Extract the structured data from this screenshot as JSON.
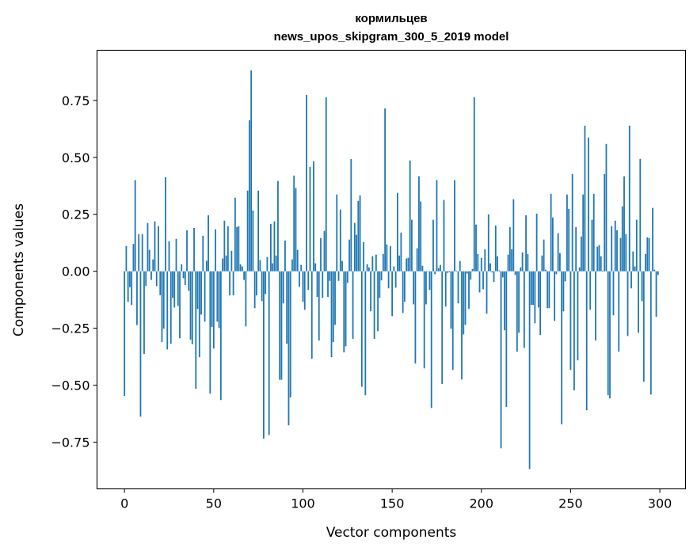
{
  "chart_data": {
    "type": "bar",
    "title": "кормильцев",
    "subtitle": "news_upos_skipgram_300_5_2019 model",
    "xlabel": "Vector components",
    "ylabel": "Components values",
    "xlim": [
      -15.39,
      314.39
    ],
    "ylim": [
      -0.955,
      0.97
    ],
    "xticks": [
      0,
      50,
      100,
      150,
      200,
      250,
      300
    ],
    "xtick_labels": [
      "0",
      "50",
      "100",
      "150",
      "200",
      "250",
      "300"
    ],
    "yticks": [
      -0.75,
      -0.5,
      -0.25,
      0,
      0.25,
      0.5,
      0.75
    ],
    "ytick_labels": [
      "−0.75",
      "−0.50",
      "−0.25",
      "0.00",
      "0.25",
      "0.50",
      "0.75"
    ],
    "grid": false,
    "bar_color": "#1f77b4",
    "values": [
      -0.547,
      0.111,
      -0.134,
      -0.07,
      -0.148,
      0.12,
      0.4,
      -0.236,
      0.163,
      -0.638,
      0.163,
      -0.363,
      -0.065,
      0.212,
      0.094,
      -0.038,
      0.052,
      0.219,
      -0.065,
      0.198,
      -0.105,
      -0.311,
      -0.252,
      0.413,
      -0.343,
      0.132,
      -0.318,
      -0.117,
      -0.159,
      0.142,
      -0.152,
      -0.294,
      0.031,
      -0.03,
      -0.06,
      0.18,
      -0.086,
      -0.3,
      -0.32,
      0.19,
      -0.516,
      -0.165,
      -0.377,
      -0.19,
      0.156,
      -0.221,
      0.046,
      0.246,
      -0.537,
      -0.244,
      -0.339,
      0.184,
      -0.221,
      -0.249,
      -0.565,
      0.056,
      0.222,
      0.069,
      0.198,
      -0.106,
      0.09,
      -0.106,
      0.323,
      0.194,
      0.198,
      0.031,
      0.021,
      -0.038,
      -0.242,
      0.354,
      0.663,
      0.882,
      0.267,
      -0.162,
      -0.106,
      0.354,
      0.049,
      -0.131,
      -0.735,
      -0.1,
      0.0625,
      -0.719,
      0.208,
      0.035,
      0.219,
      0.069,
      0.396,
      -0.476,
      -0.476,
      -0.141,
      0.135,
      -0.318,
      -0.676,
      -0.554,
      0.052,
      0.42,
      0.365,
      0.094,
      -0.068,
      0.028,
      -0.134,
      -0.169,
      0.774,
      -0.082,
      0.458,
      -0.384,
      0.483,
      0.035,
      -0.113,
      -0.304,
      0.146,
      -0.117,
      0.177,
      0.764,
      -0.113,
      -0.042,
      -0.377,
      -0.311,
      -0.235,
      0.337,
      -0.042,
      0.271,
      0.045,
      -0.356,
      -0.329,
      -0.051,
      0.139,
      0.493,
      -0.297,
      0.212,
      0.16,
      0.309,
      0.333,
      -0.507,
      0.128,
      -0.544,
      0.031,
      0.017,
      -0.176,
      0.066,
      -0.297,
      0.073,
      -0.263,
      -0.117,
      -0.04,
      0.076,
      0.715,
      0.118,
      -0.075,
      0.111,
      -0.197,
      0.021,
      -0.072,
      0.344,
      0.069,
      0.17,
      -0.183,
      -0.134,
      0.056,
      0.059,
      0.486,
      0.226,
      -0.145,
      -0.405,
      0.101,
      0.417,
      0.306,
      0.024,
      -0.426,
      -0.145,
      0.0,
      -0.082,
      -0.6,
      0.226,
      -0.013,
      0.4,
      0.014,
      0.028,
      -0.495,
      0.313,
      -0.155,
      -0.007,
      -0.004,
      -0.252,
      -0.433,
      0.4,
      0.003,
      -0.141,
      0.045,
      -0.475,
      -0.277,
      -0.235,
      -0.01,
      -0.165,
      -0.037,
      0.01,
      0.764,
      0.205,
      0.076,
      -0.093,
      0.059,
      -0.079,
      0.097,
      -0.186,
      0.25,
      0.035,
      -0.005,
      -0.047,
      0.201,
      0.066,
      0.004,
      -0.777,
      -0.027,
      -0.259,
      -0.596,
      0.073,
      0.194,
      0.097,
      0.316,
      -0.016,
      -0.353,
      -0.27,
      0.017,
      0.083,
      -0.336,
      0.246,
      0.076,
      -0.868,
      -0.148,
      -0.148,
      -0.228,
      0.253,
      -0.159,
      -0.28,
      0.069,
      0.139,
      0.007,
      -0.162,
      -0.162,
      0.34,
      0.236,
      -0.218,
      -0.013,
      0.167,
      0.08,
      -0.672,
      -0.176,
      -0.044,
      0.337,
      0.274,
      -0.433,
      0.427,
      -0.523,
      0.194,
      -0.391,
      0.017,
      0.153,
      0.337,
      0.639,
      -0.61,
      0.587,
      -0.169,
      0.226,
      0.34,
      -0.304,
      0.108,
      0.115,
      0.066,
      0.003,
      0.427,
      0.559,
      -0.544,
      -0.558,
      0.198,
      -0.193,
      0.222,
      0.18,
      -0.353,
      0.146,
      0.285,
      0.417,
      0.163,
      -0.284,
      0.639,
      -0.075,
      0.087,
      0.021,
      0.226,
      -0.27,
      0.493,
      -0.131,
      -0.485,
      0.076,
      0.149,
      0.146,
      -0.541,
      0.278,
      0.007,
      -0.2,
      -0.016
    ]
  }
}
